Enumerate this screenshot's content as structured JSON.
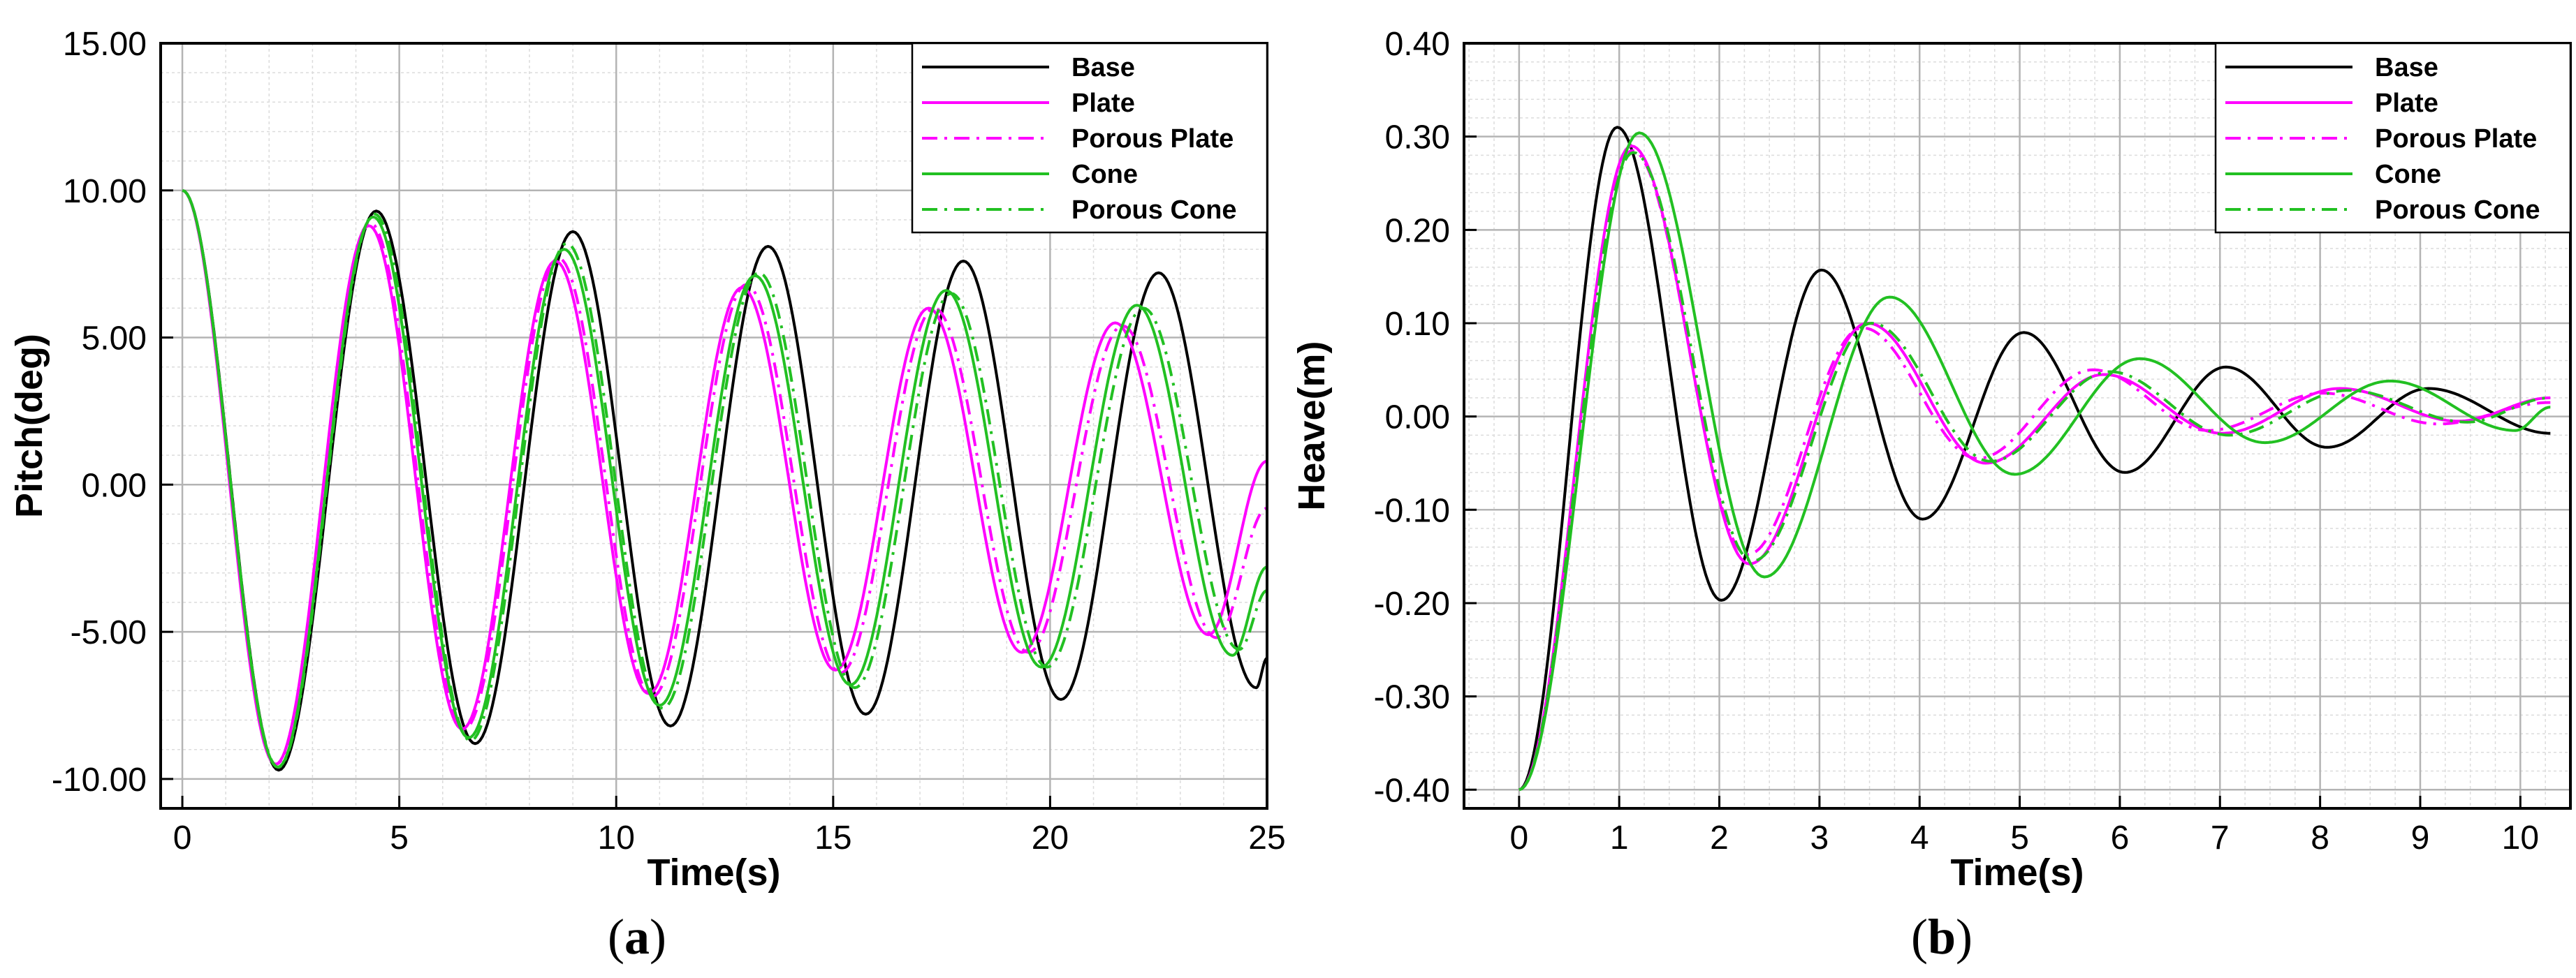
{
  "colors": {
    "Base": "#000000",
    "Plate": "#ff00ff",
    "Porous Plate": "#ff00ff",
    "Cone": "#22c022",
    "Porous Cone": "#22c022",
    "grid_major": "#b4b4b4",
    "grid_minor": "#dcdcdc"
  },
  "panels": [
    {
      "open": "(",
      "letter": "a",
      "close": ")"
    },
    {
      "open": "(",
      "letter": "b",
      "close": ")"
    }
  ],
  "chart_data": [
    {
      "type": "line",
      "xlabel": "Time(s)",
      "ylabel": "Pitch(deg)",
      "xlim": [
        -0.5,
        25
      ],
      "ylim": [
        -11,
        15
      ],
      "xticks": [
        0,
        5,
        10,
        15,
        20,
        25
      ],
      "xtick_labels": [
        "0",
        "5",
        "10",
        "15",
        "20",
        "25"
      ],
      "yticks": [
        -10,
        -5,
        0,
        5,
        10,
        15
      ],
      "ytick_labels": [
        "-10.00",
        "-5.00",
        "0.00",
        "5.00",
        "10.00",
        "15.00"
      ],
      "grid": true,
      "legend_position": "top-right",
      "series": [
        {
          "name": "Base",
          "dash": "solid",
          "x": [
            0,
            2.22,
            4.47,
            6.75,
            9.0,
            11.25,
            13.5,
            15.75,
            18.0,
            20.25,
            22.5,
            24.75,
            25
          ],
          "y": [
            10,
            -9.7,
            9.3,
            -8.8,
            8.6,
            -8.2,
            8.1,
            -7.8,
            7.6,
            -7.3,
            7.2,
            -6.9,
            -5.9
          ]
        },
        {
          "name": "Plate",
          "dash": "solid",
          "x": [
            0,
            2.15,
            4.3,
            6.45,
            8.6,
            10.75,
            12.9,
            15.05,
            17.2,
            19.35,
            21.5,
            23.65,
            25
          ],
          "y": [
            10,
            -9.5,
            8.8,
            -8.3,
            7.6,
            -7.1,
            6.7,
            -6.3,
            6.0,
            -5.7,
            5.5,
            -5.1,
            0.8
          ]
        },
        {
          "name": "Porous Plate",
          "dash": "dashdot",
          "x": [
            0,
            2.16,
            4.33,
            6.5,
            8.67,
            10.83,
            13.0,
            15.17,
            17.33,
            19.5,
            21.67,
            23.83,
            25
          ],
          "y": [
            10,
            -9.5,
            8.9,
            -8.3,
            7.7,
            -7.2,
            6.8,
            -6.4,
            6.0,
            -5.7,
            5.4,
            -5.2,
            -0.8
          ]
        },
        {
          "name": "Cone",
          "dash": "solid",
          "x": [
            0,
            2.2,
            4.4,
            6.6,
            8.8,
            11.0,
            13.2,
            15.4,
            17.6,
            19.8,
            22.0,
            24.2,
            25
          ],
          "y": [
            10,
            -9.6,
            9.1,
            -8.6,
            8.0,
            -7.5,
            7.1,
            -6.8,
            6.6,
            -6.2,
            6.1,
            -5.8,
            -2.8
          ]
        },
        {
          "name": "Porous Cone",
          "dash": "dashdot",
          "x": [
            0,
            2.21,
            4.43,
            6.64,
            8.86,
            11.07,
            13.29,
            15.5,
            17.72,
            19.93,
            22.15,
            24.36,
            25
          ],
          "y": [
            10,
            -9.6,
            9.2,
            -8.7,
            8.2,
            -7.6,
            7.2,
            -6.9,
            6.5,
            -6.2,
            6.0,
            -5.6,
            -3.6
          ]
        }
      ]
    },
    {
      "type": "line",
      "xlabel": "Time(s)",
      "ylabel": "Heave(m)",
      "xlim": [
        -0.55,
        10.5
      ],
      "ylim": [
        -0.42,
        0.4
      ],
      "xticks": [
        0,
        1,
        2,
        3,
        4,
        5,
        6,
        7,
        8,
        9,
        10
      ],
      "xtick_labels": [
        "0",
        "1",
        "2",
        "3",
        "4",
        "5",
        "6",
        "7",
        "8",
        "9",
        "10"
      ],
      "yticks": [
        -0.4,
        -0.3,
        -0.2,
        -0.1,
        0,
        0.1,
        0.2,
        0.3,
        0.4
      ],
      "ytick_labels": [
        "-0.40",
        "-0.30",
        "-0.20",
        "-0.10",
        "0.00",
        "0.10",
        "0.20",
        "0.30",
        "0.40"
      ],
      "grid": true,
      "legend_position": "top-right",
      "series": [
        {
          "name": "Base",
          "dash": "solid",
          "x": [
            0,
            0.98,
            2.02,
            3.02,
            4.03,
            5.04,
            6.05,
            7.06,
            8.07,
            9.08,
            10.3
          ],
          "y": [
            -0.4,
            0.31,
            -0.197,
            0.157,
            -0.11,
            0.09,
            -0.06,
            0.053,
            -0.033,
            0.03,
            -0.018
          ]
        },
        {
          "name": "Plate",
          "dash": "solid",
          "x": [
            0,
            1.12,
            2.3,
            3.48,
            4.66,
            5.84,
            7.02,
            8.2,
            9.38,
            10.3
          ],
          "y": [
            -0.4,
            0.29,
            -0.158,
            0.1,
            -0.05,
            0.045,
            -0.018,
            0.03,
            -0.005,
            0.02
          ]
        },
        {
          "name": "Porous Plate",
          "dash": "dashdot",
          "x": [
            0,
            1.13,
            2.28,
            3.43,
            4.58,
            5.73,
            6.88,
            8.03,
            9.18,
            10.3
          ],
          "y": [
            -0.4,
            0.285,
            -0.148,
            0.095,
            -0.045,
            0.05,
            -0.015,
            0.025,
            -0.008,
            0.015
          ]
        },
        {
          "name": "Cone",
          "dash": "solid",
          "x": [
            0,
            1.2,
            2.45,
            3.7,
            4.95,
            6.2,
            7.45,
            8.7,
            9.95,
            10.3
          ],
          "y": [
            -0.4,
            0.304,
            -0.172,
            0.128,
            -0.062,
            0.062,
            -0.028,
            0.038,
            -0.015,
            0.01
          ]
        },
        {
          "name": "Porous Cone",
          "dash": "dashdot",
          "x": [
            0,
            1.14,
            2.33,
            3.52,
            4.71,
            5.9,
            7.09,
            8.28,
            9.47,
            10.3
          ],
          "y": [
            -0.4,
            0.283,
            -0.155,
            0.1,
            -0.048,
            0.048,
            -0.02,
            0.028,
            -0.006,
            0.02
          ]
        }
      ]
    }
  ]
}
